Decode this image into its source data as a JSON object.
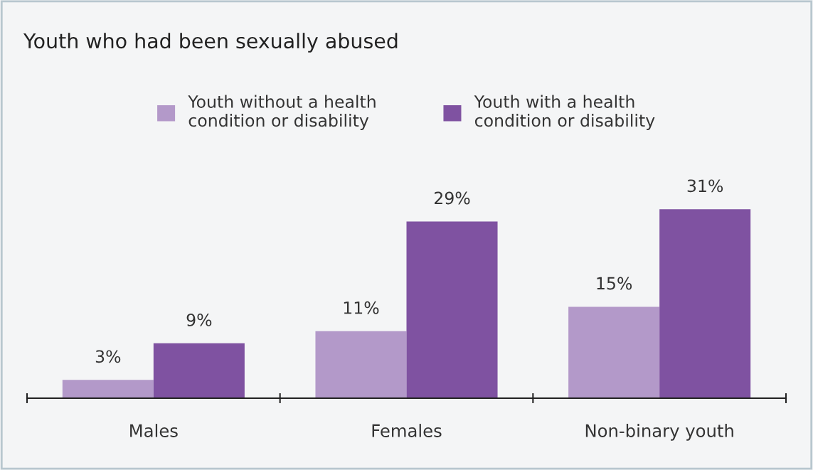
{
  "chart_data": {
    "type": "bar",
    "title": "Youth who had been sexually abused",
    "categories": [
      "Males",
      "Females",
      "Non-binary youth"
    ],
    "series": [
      {
        "name": "Youth without a health\ncondition or disability",
        "color": "#b399c9",
        "values": [
          3,
          11,
          15
        ],
        "value_labels": [
          "3%",
          "11%",
          "15%"
        ]
      },
      {
        "name": "Youth with a health\ncondition or disability",
        "color": "#7f52a1",
        "values": [
          9,
          29,
          31
        ],
        "value_labels": [
          "9%",
          "29%",
          "31%"
        ]
      }
    ],
    "legend": "top",
    "grid": false,
    "tick_labels": "x"
  }
}
